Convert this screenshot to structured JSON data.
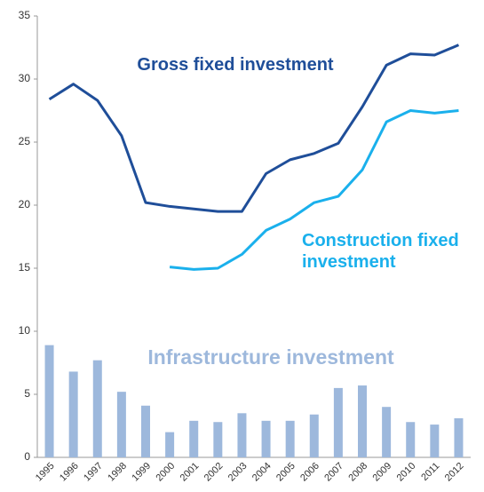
{
  "chart_data": {
    "type": "line",
    "categories": [
      "1995",
      "1996",
      "1997",
      "1998",
      "1999",
      "2000",
      "2001",
      "2002",
      "2003",
      "2004",
      "2005",
      "2006",
      "2007",
      "2008",
      "2009",
      "2010",
      "2011",
      "2012"
    ],
    "series": [
      {
        "name": "Infrastructure investment",
        "type": "bar",
        "color": "#9db8dc",
        "values": [
          8.9,
          6.8,
          7.7,
          5.2,
          4.1,
          2.0,
          2.9,
          2.8,
          3.5,
          2.9,
          2.9,
          3.4,
          5.5,
          5.7,
          4.0,
          2.8,
          2.6,
          3.1
        ]
      },
      {
        "name": "Gross fixed investment",
        "type": "line",
        "color": "#1f4e99",
        "values": [
          28.4,
          29.6,
          28.3,
          25.5,
          20.2,
          19.9,
          19.7,
          19.5,
          19.5,
          22.5,
          23.6,
          24.1,
          24.9,
          27.8,
          31.1,
          32.0,
          31.9,
          32.7
        ]
      },
      {
        "name": "Construction fixed investment",
        "type": "line",
        "color": "#1ab0ec",
        "values": [
          null,
          null,
          null,
          null,
          null,
          15.1,
          14.9,
          15.0,
          16.1,
          18.0,
          18.9,
          20.2,
          20.7,
          22.8,
          26.6,
          27.5,
          27.3,
          27.5
        ]
      }
    ],
    "ylim": [
      0,
      35
    ],
    "yticks": [
      0,
      5,
      10,
      15,
      20,
      25,
      30,
      35
    ],
    "grid": false
  }
}
